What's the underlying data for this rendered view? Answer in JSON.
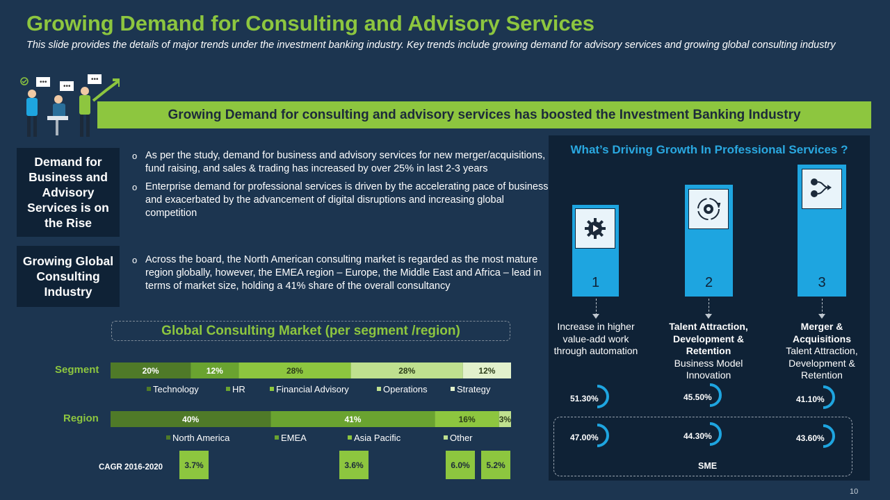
{
  "title": "Growing Demand for Consulting and Advisory Services",
  "subtitle": "This slide provides the details of major trends under the investment banking industry. Key trends include growing demand for advisory services and growing global consulting industry",
  "banner": "Growing Demand for consulting and advisory services has boosted the Investment Banking Industry",
  "sections": [
    {
      "label": "Demand for Business and Advisory Services is on the Rise",
      "bullets": [
        "As per the study, demand for business and advisory services for new merger/acquisitions, fund raising, and sales & trading has increased by over 25% in last 2-3 years",
        "Enterprise demand for professional services is driven by the accelerating pace of business and exacerbated by the advancement of digital disruptions and increasing global competition"
      ]
    },
    {
      "label": "Growing Global Consulting Industry",
      "bullets": [
        "Across the board, the North American consulting market is regarded as the most mature region globally, however, the EMEA region – Europe, the Middle East and Africa – lead in terms of market size, holding a 41% share of the overall consultancy"
      ]
    }
  ],
  "chart_data": {
    "type": "bar",
    "stacked": "100%",
    "orientation": "horizontal",
    "title": "Global Consulting Market (per segment /region)",
    "rows": [
      {
        "name": "Segment",
        "categories": [
          "Technology",
          "HR",
          "Financial Advisory",
          "Operations",
          "Strategy"
        ],
        "values": [
          20,
          12,
          28,
          28,
          12
        ],
        "labels": [
          "20%",
          "12%",
          "28%",
          "28%",
          "12%"
        ],
        "colors": [
          "#4f7a28",
          "#6aa330",
          "#8dc63f",
          "#bfe08f",
          "#e2f1cc"
        ]
      },
      {
        "name": "Region",
        "categories": [
          "North America",
          "EMEA",
          "Asia Pacific",
          "Other"
        ],
        "values": [
          40,
          41,
          16,
          3
        ],
        "labels": [
          "40%",
          "41%",
          "16%",
          "3%"
        ],
        "colors": [
          "#4f7a28",
          "#6aa330",
          "#8dc63f",
          "#bfe08f"
        ]
      }
    ],
    "cagr_label": "CAGR 2016-2020",
    "cagr": [
      {
        "region": "North America",
        "value": "3.7%"
      },
      {
        "region": "EMEA",
        "value": "3.6%"
      },
      {
        "region": "Asia Pacific",
        "value": "6.0%"
      },
      {
        "region": "Other",
        "value": "5.2%"
      }
    ]
  },
  "panel": {
    "title": "What’s Driving Growth In Professional Services ?",
    "drivers": [
      {
        "num": "1",
        "icon": "gear-play-icon",
        "bold": "",
        "text": "Increase in higher value-add work through automation",
        "pct_top": "51.30%",
        "pct_top_value": 51.3,
        "pct_sme": "47.00%",
        "pct_sme_value": 47.0
      },
      {
        "num": "2",
        "icon": "cycle-gear-icon",
        "bold": "Talent Attraction, Development & Retention",
        "text": "Business Model Innovation",
        "pct_top": "45.50%",
        "pct_top_value": 45.5,
        "pct_sme": "44.30%",
        "pct_sme_value": 44.3
      },
      {
        "num": "3",
        "icon": "merge-flow-icon",
        "bold": "Merger & Acquisitions",
        "text": "Talent Attraction, Development & Retention",
        "pct_top": "41.10%",
        "pct_top_value": 41.1,
        "pct_sme": "43.60%",
        "pct_sme_value": 43.6
      }
    ],
    "sme_label": "SME"
  },
  "page_number": "10",
  "colors": {
    "background": "#1c3550",
    "accent_green": "#8dc63f",
    "accent_blue": "#1ea5e0",
    "panel": "#0f2236"
  }
}
